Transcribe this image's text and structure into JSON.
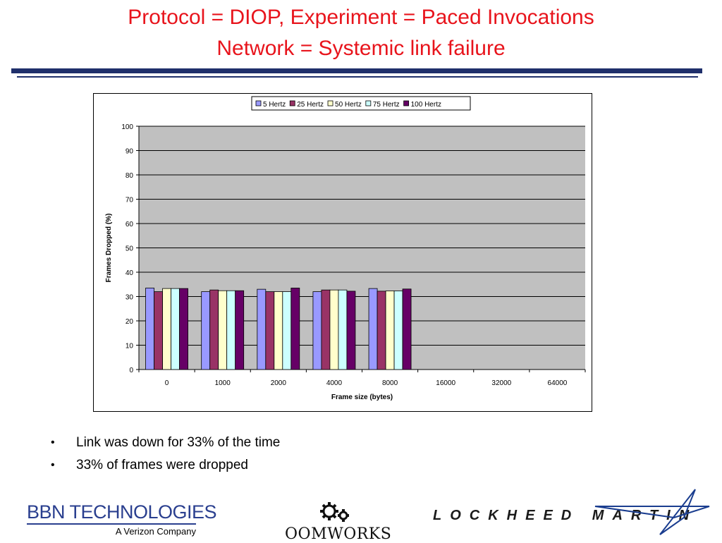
{
  "slide": {
    "title_line1": "Protocol = DIOP, Experiment = Paced Invocations",
    "title_line2": "Network = Systemic link failure",
    "bullets": [
      "Link was down for 33% of the time",
      "33% of frames were dropped"
    ]
  },
  "logos": {
    "bbn_name": "BBN TECHNOLOGIES",
    "bbn_sub": "A Verizon Company",
    "oom_name": "OOMWORKS",
    "lm_name": "LOCKHEED MARTIN"
  },
  "colors": {
    "title": "#e8141c",
    "rule": "#1f2f6b",
    "plot_bg": "#c0c0c0"
  },
  "chart_data": {
    "type": "bar",
    "xlabel": "Frame size (bytes)",
    "ylabel": "Frames Dropped (%)",
    "ylim": [
      0,
      100
    ],
    "yticks": [
      0,
      10,
      20,
      30,
      40,
      50,
      60,
      70,
      80,
      90,
      100
    ],
    "grid": true,
    "legend_position": "top",
    "categories": [
      "0",
      "1000",
      "2000",
      "4000",
      "8000",
      "16000",
      "32000",
      "64000"
    ],
    "series": [
      {
        "name": "5 Hertz",
        "color": "#9999ff",
        "values": [
          33.5,
          32,
          33,
          32,
          33.3,
          null,
          null,
          null
        ]
      },
      {
        "name": "25 Hertz",
        "color": "#993366",
        "values": [
          32,
          32.7,
          32,
          32.7,
          32.2,
          null,
          null,
          null
        ]
      },
      {
        "name": "50 Hertz",
        "color": "#ffffcc",
        "values": [
          33.3,
          32.4,
          32,
          32.7,
          32.3,
          null,
          null,
          null
        ]
      },
      {
        "name": "75 Hertz",
        "color": "#ccffff",
        "values": [
          33.3,
          32.4,
          32,
          32.7,
          32.3,
          null,
          null,
          null
        ]
      },
      {
        "name": "100 Hertz",
        "color": "#660066",
        "values": [
          33.3,
          32.4,
          33.5,
          32.2,
          33.1,
          null,
          null,
          null
        ]
      }
    ]
  }
}
